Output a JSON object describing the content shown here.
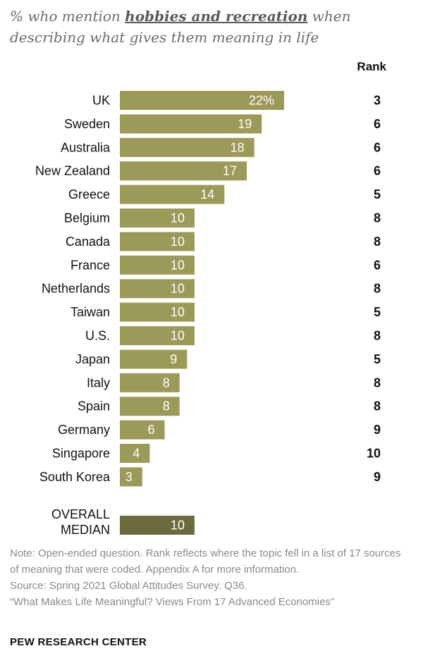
{
  "header": {
    "title_prefix": "% who mention ",
    "title_highlight": "hobbies and recreation",
    "title_suffix": " when describing what gives them meaning in life",
    "rank_label": "Rank"
  },
  "chart_data": {
    "type": "bar",
    "orientation": "horizontal",
    "categories": [
      "UK",
      "Sweden",
      "Australia",
      "New Zealand",
      "Greece",
      "Belgium",
      "Canada",
      "France",
      "Netherlands",
      "Taiwan",
      "U.S.",
      "Japan",
      "Italy",
      "Spain",
      "Germany",
      "Singapore",
      "South Korea"
    ],
    "values": [
      22,
      19,
      18,
      17,
      14,
      10,
      10,
      10,
      10,
      10,
      10,
      9,
      8,
      8,
      6,
      4,
      3
    ],
    "value_labels": [
      "22%",
      "19",
      "18",
      "17",
      "14",
      "10",
      "10",
      "10",
      "10",
      "10",
      "10",
      "9",
      "8",
      "8",
      "6",
      "4",
      "3"
    ],
    "ranks": [
      "3",
      "6",
      "6",
      "6",
      "5",
      "8",
      "8",
      "6",
      "8",
      "5",
      "8",
      "5",
      "8",
      "8",
      "9",
      "10",
      "9"
    ],
    "median": {
      "label_line1": "OVERALL",
      "label_line2": "MEDIAN",
      "value": 10,
      "value_label": "10"
    },
    "bar_color": "#9c9a59",
    "median_color": "#6b6b3e",
    "xlim": [
      0,
      22
    ]
  },
  "footer": {
    "note": "Note: Open-ended question. Rank reflects where the topic fell in a list of 17 sources of meaning that were coded. Appendix A for more information.",
    "source": "Source: Spring 2021 Global Attitudes Survey. Q36.",
    "report": "“What Makes Life Meaningful? Views From 17 Advanced Economies”",
    "brand": "PEW RESEARCH CENTER"
  }
}
